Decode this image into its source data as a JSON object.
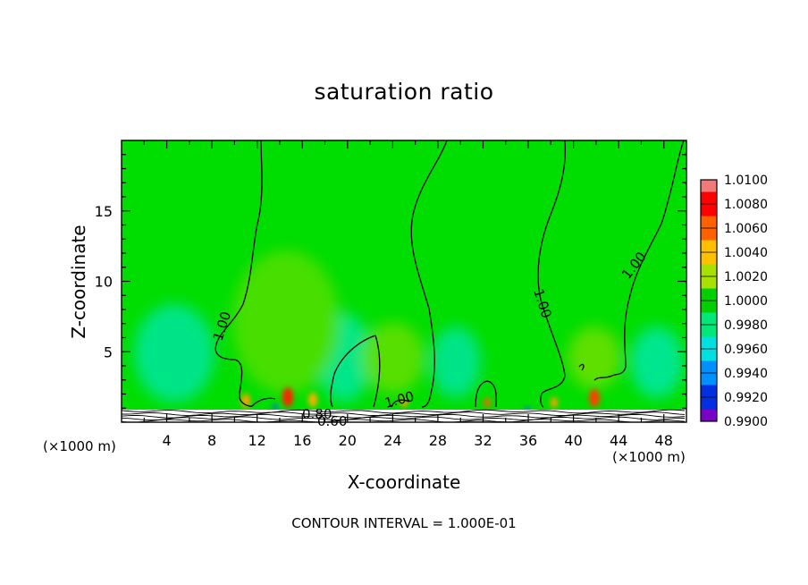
{
  "chart_data": {
    "type": "heatmap",
    "title": "saturation ratio",
    "xlabel": "X-coordinate",
    "ylabel": "Z-coordinate",
    "x_unit": "(×1000 m)",
    "xlim": [
      0,
      50
    ],
    "ylim": [
      0,
      20
    ],
    "x_ticks": [
      "4",
      "8",
      "12",
      "16",
      "20",
      "24",
      "28",
      "32",
      "36",
      "40",
      "44",
      "48"
    ],
    "y_ticks": [
      "5",
      "10",
      "15"
    ],
    "colorbar": {
      "levels": [
        "1.0100",
        "1.0080",
        "1.0060",
        "1.0040",
        "1.0020",
        "1.0000",
        "0.9980",
        "0.9960",
        "0.9940",
        "0.9920",
        "0.9900"
      ],
      "colors": [
        "#f07a7a",
        "#ff0000",
        "#ff6000",
        "#ffc000",
        "#a8e000",
        "#00d000",
        "#00e878",
        "#00e0e0",
        "#0090ff",
        "#0030e0",
        "#7a00c8"
      ]
    },
    "contour_labels": [
      "1.00",
      "1.00",
      "1.00",
      "1.00",
      "0.80",
      "0.60"
    ],
    "contour_note": "CONTOUR INTERVAL = 1.000E-01",
    "background_value": 1.0,
    "grid": false
  }
}
